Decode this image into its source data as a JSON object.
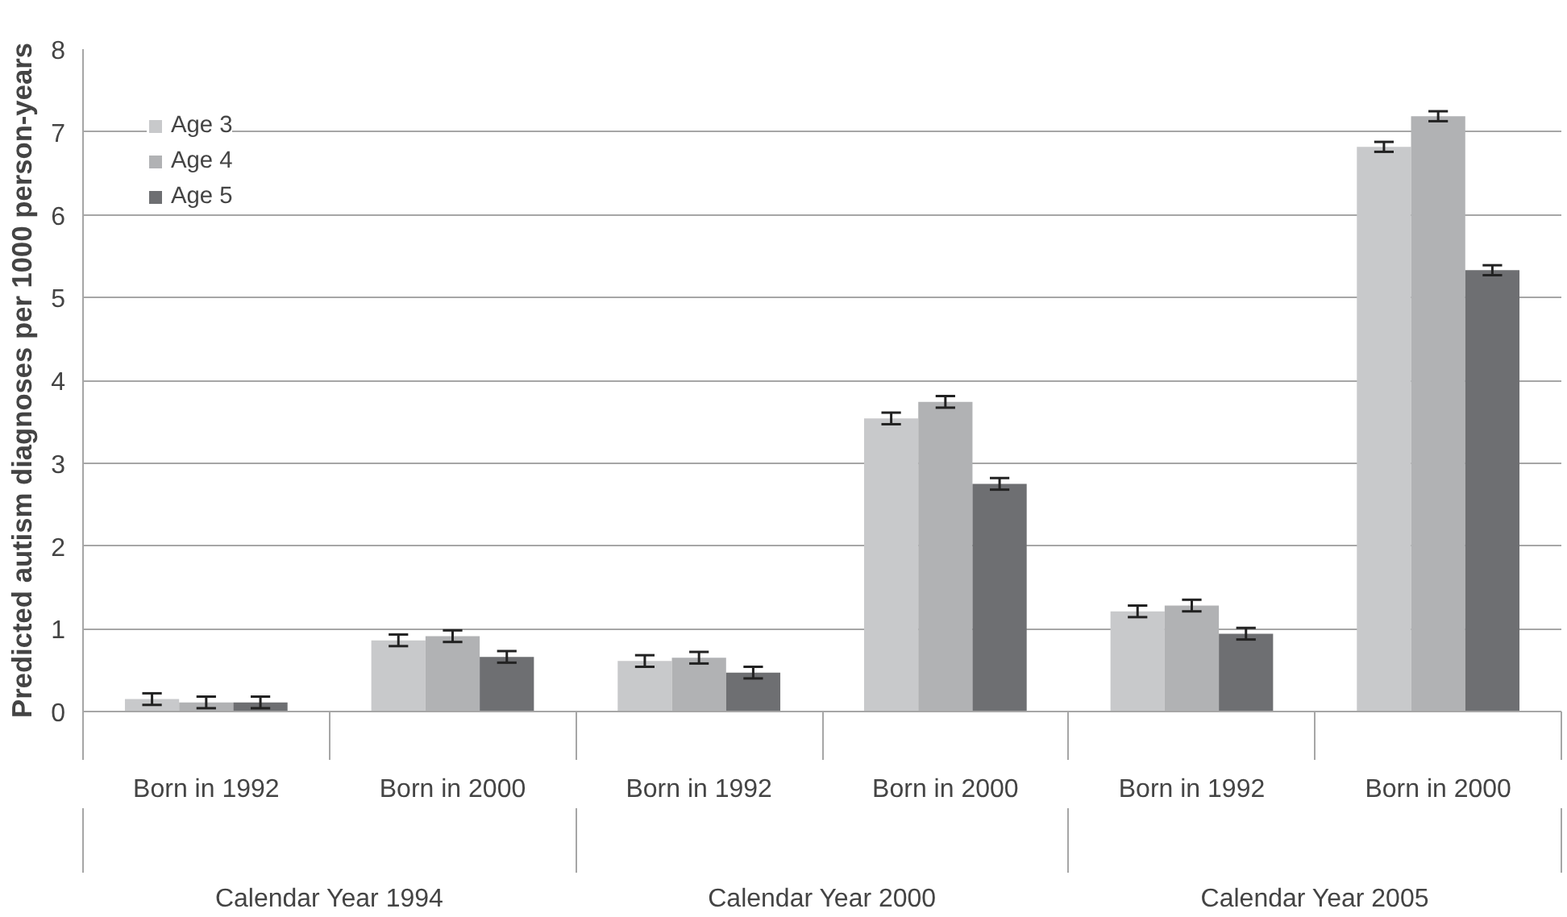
{
  "chart_data": {
    "type": "bar",
    "ylabel": "Predicted autism diagnoses per 1000 person-years",
    "categories": [
      "Born in 1992",
      "Born in 2000",
      "Born in 1992",
      "Born in 2000",
      "Born in 1992",
      "Born in 2000"
    ],
    "annotations": [
      "Calendar Year 1994",
      "Calendar Year 2000",
      "Calendar Year 2005"
    ],
    "series": [
      {
        "name": "Age 3",
        "color": "#c8c9cb",
        "values": [
          0.15,
          0.86,
          0.61,
          3.54,
          1.21,
          6.82
        ],
        "errors": [
          0.07,
          0.07,
          0.07,
          0.07,
          0.07,
          0.06
        ]
      },
      {
        "name": "Age 4",
        "color": "#b1b2b4",
        "values": [
          0.11,
          0.91,
          0.65,
          3.74,
          1.28,
          7.19
        ],
        "errors": [
          0.07,
          0.07,
          0.07,
          0.07,
          0.07,
          0.06
        ]
      },
      {
        "name": "Age 5",
        "color": "#6e6f72",
        "values": [
          0.11,
          0.66,
          0.47,
          2.75,
          0.94,
          5.33
        ],
        "errors": [
          0.07,
          0.07,
          0.07,
          0.07,
          0.07,
          0.06
        ]
      }
    ],
    "ylim": [
      0,
      8
    ],
    "yticks": [
      0,
      1,
      2,
      3,
      4,
      5,
      6,
      7,
      8
    ],
    "grid": "y",
    "legend": "top left"
  }
}
